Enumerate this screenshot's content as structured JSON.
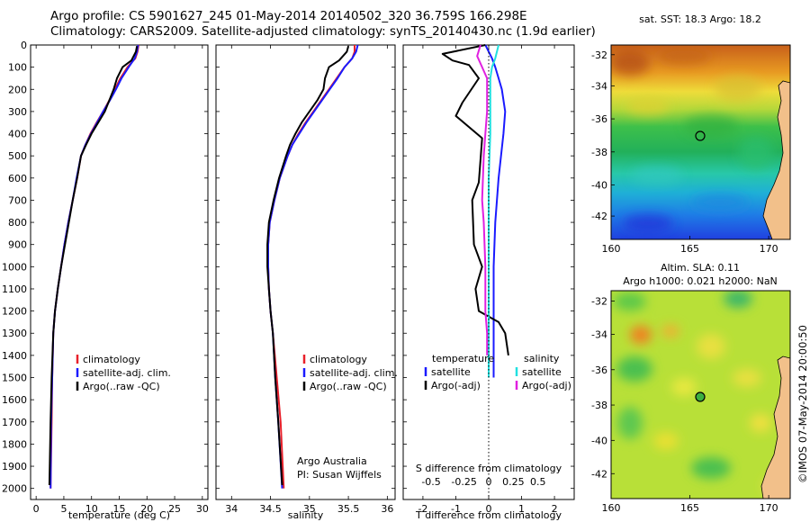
{
  "header": {
    "line1": "Argo profile: CS 5901627_245 01-May-2014 20140502_320 36.759S 166.298E",
    "line2": "Climatology: CARS2009. Satellite-adjusted climatology: synTS_20140430.nc (1.9d earlier)"
  },
  "colors": {
    "climatology": "#e8202a",
    "satellite": "#1a1aff",
    "argo": "#000000",
    "sat_cyan": "#22e0e0",
    "argo_magenta": "#e020e0"
  },
  "depth_axis": {
    "ticks": [
      "0",
      "100",
      "200",
      "300",
      "400",
      "500",
      "600",
      "700",
      "800",
      "900",
      "1000",
      "1100",
      "1200",
      "1300",
      "1400",
      "1500",
      "1600",
      "1700",
      "1800",
      "1900",
      "2000"
    ]
  },
  "panels": {
    "temperature": {
      "xlabel": "temperature (deg C)",
      "xticks": [
        "0",
        "5",
        "10",
        "15",
        "20",
        "25",
        "30"
      ],
      "legend": [
        "climatology",
        "satellite-adj. clim.",
        "Argo(..raw -QC)"
      ]
    },
    "salinity": {
      "xlabel": "salinity",
      "xticks": [
        "34",
        "34.5",
        "35",
        "35.5",
        "36"
      ],
      "legend": [
        "climatology",
        "satellite-adj. clim.",
        "Argo(..raw -QC)"
      ],
      "note1": "Argo Australia",
      "note2": "PI: Susan Wijffels"
    },
    "difference": {
      "top_label": "S difference from climatology",
      "top_ticks": [
        "-0.5",
        "-0.25",
        "0",
        "0.25",
        "0.5"
      ],
      "xlabel": "T difference from climatology",
      "xticks": [
        "-2",
        "-1",
        "0",
        "1",
        "2"
      ],
      "legend_temp_title": "temperature",
      "legend_sal_title": "salinity",
      "legend_temp": [
        "satellite",
        "Argo(-adj)"
      ],
      "legend_sal": [
        "satellite",
        "Argo(-adj)"
      ]
    }
  },
  "maps": {
    "sst": {
      "title": "sat. SST: 18.3 Argo: 18.2",
      "yticks": [
        "-32",
        "-34",
        "-36",
        "-38",
        "-40",
        "-42"
      ],
      "xticks": [
        "160",
        "165",
        "170"
      ]
    },
    "sla": {
      "title1": "Altim. SLA: 0.11",
      "title2": "Argo h1000: 0.021 h2000: NaN",
      "yticks": [
        "-32",
        "-34",
        "-36",
        "-38",
        "-40",
        "-42"
      ],
      "xticks": [
        "160",
        "165",
        "170"
      ]
    }
  },
  "side_label": "©IMOS 07-May-2014 20:00:50",
  "chart_data": [
    {
      "type": "line",
      "title": "",
      "xlabel": "temperature (deg C)",
      "ylabel": "",
      "xlim": [
        -1,
        31
      ],
      "ylim": [
        2050,
        0
      ],
      "series": [
        {
          "name": "climatology",
          "x": [
            18.5,
            18.3,
            17.9,
            16.5,
            15.2,
            14.2,
            13.2,
            12.1,
            10.9,
            9.8,
            8.9,
            8.1,
            7.4,
            6.6,
            5.8,
            5.1,
            4.5,
            3.9,
            3.4,
            3.1,
            2.9,
            2.8,
            2.6
          ],
          "y": [
            0,
            30,
            60,
            100,
            150,
            200,
            250,
            300,
            350,
            400,
            450,
            500,
            600,
            700,
            800,
            900,
            1000,
            1100,
            1200,
            1300,
            1500,
            1700,
            2000
          ]
        },
        {
          "name": "satellite-adj. clim.",
          "x": [
            18.4,
            18.2,
            17.8,
            16.7,
            15.4,
            14.4,
            13.3,
            12.1,
            11.0,
            9.9,
            8.9,
            8.1,
            7.3,
            6.6,
            5.8,
            5.1,
            4.5,
            3.9,
            3.4,
            3.1,
            2.9,
            2.7,
            2.6
          ],
          "y": [
            0,
            30,
            60,
            100,
            150,
            200,
            250,
            300,
            350,
            400,
            450,
            500,
            600,
            700,
            800,
            900,
            1000,
            1100,
            1200,
            1300,
            1500,
            1700,
            2000
          ]
        },
        {
          "name": "Argo(..raw -QC)",
          "x": [
            18.2,
            18.0,
            17.2,
            15.6,
            14.6,
            14.0,
            13.2,
            12.4,
            11.2,
            10.0,
            9.0,
            8.1,
            7.4,
            6.6,
            5.9,
            5.2,
            4.5,
            3.9,
            3.4,
            3.1,
            2.8,
            2.6,
            2.4
          ],
          "y": [
            5,
            30,
            70,
            100,
            150,
            200,
            250,
            300,
            350,
            400,
            450,
            500,
            600,
            700,
            800,
            900,
            1000,
            1100,
            1200,
            1300,
            1500,
            1700,
            1985
          ]
        }
      ]
    },
    {
      "type": "line",
      "title": "",
      "xlabel": "salinity",
      "ylabel": "",
      "xlim": [
        33.8,
        36.1
      ],
      "ylim": [
        2050,
        0
      ],
      "series": [
        {
          "name": "climatology",
          "x": [
            35.58,
            35.58,
            35.55,
            35.45,
            35.35,
            35.25,
            35.15,
            35.05,
            34.95,
            34.86,
            34.78,
            34.72,
            34.62,
            34.55,
            34.49,
            34.47,
            34.47,
            34.48,
            34.5,
            34.53,
            34.58,
            34.63,
            34.67
          ],
          "y": [
            0,
            30,
            60,
            100,
            150,
            200,
            250,
            300,
            350,
            400,
            450,
            500,
            600,
            700,
            800,
            900,
            1000,
            1100,
            1200,
            1300,
            1500,
            1700,
            2000
          ]
        },
        {
          "name": "satellite-adj. clim.",
          "x": [
            35.62,
            35.6,
            35.55,
            35.45,
            35.36,
            35.26,
            35.16,
            35.06,
            34.96,
            34.87,
            34.78,
            34.72,
            34.62,
            34.55,
            34.49,
            34.47,
            34.47,
            34.48,
            34.5,
            34.53,
            34.56,
            34.6,
            34.65
          ],
          "y": [
            0,
            30,
            60,
            100,
            150,
            200,
            250,
            300,
            350,
            400,
            450,
            500,
            600,
            700,
            800,
            900,
            1000,
            1100,
            1200,
            1300,
            1500,
            1700,
            2000
          ]
        },
        {
          "name": "Argo(..raw -QC)",
          "x": [
            35.5,
            35.48,
            35.38,
            35.25,
            35.2,
            35.18,
            35.1,
            35.0,
            34.9,
            34.82,
            34.75,
            34.7,
            34.61,
            34.54,
            34.48,
            34.46,
            34.46,
            34.48,
            34.5,
            34.53,
            34.56,
            34.6,
            34.65
          ],
          "y": [
            5,
            30,
            70,
            100,
            150,
            200,
            250,
            300,
            350,
            400,
            450,
            500,
            600,
            700,
            800,
            900,
            1000,
            1100,
            1200,
            1300,
            1500,
            1700,
            1985
          ]
        }
      ]
    },
    {
      "type": "line",
      "title": "",
      "xlabel": "T difference from climatology",
      "ylabel": "",
      "xlim": [
        -2.6,
        2.6
      ],
      "ylim": [
        2050,
        0
      ],
      "series": [
        {
          "name": "temperature satellite",
          "x": [
            -0.1,
            0.1,
            0.2,
            0.3,
            0.4,
            0.5,
            0.45,
            0.3,
            0.2,
            0.15,
            0.15,
            0.15
          ],
          "y": [
            0,
            60,
            100,
            150,
            200,
            300,
            400,
            600,
            800,
            1000,
            1300,
            1500
          ]
        },
        {
          "name": "temperature Argo(-adj)",
          "x": [
            -0.1,
            -1.4,
            -1.1,
            -0.6,
            -0.3,
            -0.8,
            -1.0,
            -0.2,
            -0.3,
            -0.5,
            -0.45,
            -0.2,
            -0.4,
            -0.3,
            0.3,
            0.5,
            0.6
          ],
          "y": [
            0,
            40,
            70,
            90,
            150,
            260,
            320,
            420,
            620,
            700,
            900,
            1000,
            1100,
            1200,
            1250,
            1300,
            1400
          ]
        },
        {
          "name": "salinity satellite",
          "x": [
            0.3,
            0.2,
            0.1,
            0.05,
            0.05,
            0.05,
            0.05,
            0.0,
            0.0,
            0.0,
            0.0
          ],
          "y": [
            0,
            60,
            100,
            150,
            200,
            300,
            400,
            600,
            800,
            1000,
            1500
          ]
        },
        {
          "name": "salinity Argo(-adj)",
          "x": [
            -0.25,
            -0.35,
            -0.2,
            -0.05,
            -0.05,
            -0.1,
            -0.15,
            -0.2,
            -0.15,
            -0.1,
            -0.1,
            -0.05,
            -0.05
          ],
          "y": [
            0,
            50,
            100,
            150,
            300,
            400,
            500,
            700,
            800,
            1000,
            1200,
            1300,
            1400
          ]
        }
      ]
    },
    {
      "type": "heatmap",
      "title": "sat. SST: 18.3 Argo: 18.2",
      "xlabel": "",
      "ylabel": "",
      "xlim": [
        160,
        173
      ],
      "ylim": [
        -43,
        -31
      ]
    },
    {
      "type": "heatmap",
      "title": "Altim. SLA: 0.11 Argo h1000: 0.021 h2000: NaN",
      "xlabel": "",
      "ylabel": "",
      "xlim": [
        160,
        173
      ],
      "ylim": [
        -43,
        -31
      ]
    }
  ]
}
